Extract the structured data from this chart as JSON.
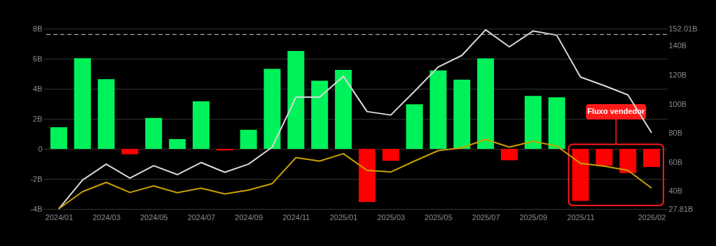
{
  "chart_data": {
    "type": "bar",
    "categories": [
      "2024/01",
      null,
      "2024/03",
      null,
      "2024/05",
      null,
      "2024/07",
      null,
      "2024/09",
      null,
      "2024/11",
      null,
      "2025/01",
      null,
      "2025/03",
      null,
      "2025/05",
      null,
      "2025/07",
      null,
      "2025/09",
      null,
      "2025/11",
      null,
      null,
      "2026/02"
    ],
    "series": [
      {
        "values": [
          1.44,
          6.03,
          4.64,
          -0.36,
          2.06,
          0.65,
          3.16,
          -0.11,
          1.27,
          5.33,
          6.51,
          4.54,
          5.26,
          -3.53,
          -0.79,
          2.96,
          5.22,
          4.6,
          6.02,
          -0.76,
          3.52,
          3.43,
          -3.47,
          -1.12,
          -1.61,
          -1.21
        ],
        "colors": [
          "#00f25a",
          "#00f25a",
          "#00f25a",
          "#ff0000",
          "#00f25a",
          "#00f25a",
          "#00f25a",
          "#ff0000",
          "#00f25a",
          "#00f25a",
          "#00f25a",
          "#00f25a",
          "#00f25a",
          "#ff0000",
          "#ff0000",
          "#00f25a",
          "#00f25a",
          "#00f25a",
          "#00f25a",
          "#ff0000",
          "#00f25a",
          "#00f25a",
          "#ff0000",
          "#ff0000",
          "#ff0000",
          "#ff0000"
        ]
      },
      {
        "type": "line",
        "axis": "y2",
        "color": "#d9d9d9",
        "values": [
          27.9,
          47.7,
          58.7,
          49.0,
          57.6,
          51.5,
          59.8,
          53.1,
          58.7,
          70.4,
          104.8,
          104.8,
          119.2,
          94.9,
          92.5,
          108.8,
          125.6,
          133.6,
          151.2,
          139.5,
          150.4,
          147.5,
          118.7,
          112.8,
          106.4,
          80.3
        ]
      },
      {
        "type": "line",
        "axis": "y2",
        "color": "#c9a000",
        "values": [
          27.9,
          39.7,
          46.1,
          39.2,
          43.7,
          39.0,
          42.1,
          38.2,
          40.8,
          45.3,
          63.2,
          60.8,
          65.9,
          54.4,
          53.3,
          60.8,
          68.0,
          69.9,
          75.7,
          70.4,
          74.4,
          71.2,
          59.2,
          57.3,
          54.4,
          42.1
        ]
      }
    ],
    "ylim": [
      -4,
      8
    ],
    "yticks": [
      {
        "value": -4,
        "label": "-4B"
      },
      {
        "value": -2,
        "label": "-2B"
      },
      0,
      {
        "value": 2,
        "label": "2B"
      },
      {
        "value": 4,
        "label": "4B"
      },
      {
        "value": 6,
        "label": "6B"
      },
      {
        "value": 8,
        "label": "8B"
      }
    ],
    "y2lim": [
      27.81,
      152.01
    ],
    "y2ticks": [
      {
        "value": 27.81,
        "label": "27.81B"
      },
      {
        "value": 40,
        "label": "40B"
      },
      {
        "value": 60,
        "label": "60B"
      },
      {
        "value": 80,
        "label": "80B"
      },
      {
        "value": 100,
        "label": "100B"
      },
      {
        "value": 120,
        "label": "120B"
      },
      {
        "value": 140,
        "label": "140B"
      },
      {
        "value": 152.01,
        "label": "152.01B"
      }
    ],
    "ref_lines": [
      {
        "axis": "y2",
        "value": 148.0,
        "color": "#cccccc",
        "line_style": "dashed"
      }
    ],
    "annotations": [
      "Fluxo vendedor"
    ],
    "grid": "y"
  }
}
